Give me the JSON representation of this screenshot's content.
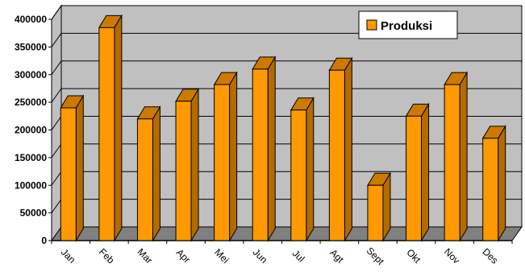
{
  "chart_data": {
    "type": "bar",
    "style": "3d-column",
    "categories": [
      "Jan",
      "Feb",
      "Mar",
      "Apr",
      "Mei",
      "Jun",
      "Jul",
      "Agt",
      "Sept",
      "Okt",
      "Nov",
      "Des"
    ],
    "series": [
      {
        "name": "Produksi",
        "values": [
          240000,
          385000,
          220000,
          252000,
          282000,
          310000,
          236000,
          308000,
          100000,
          225000,
          282000,
          185000
        ]
      }
    ],
    "yticks": [
      "0",
      "50000",
      "100000",
      "150000",
      "200000",
      "250000",
      "300000",
      "350000",
      "400000"
    ],
    "ylim": [
      0,
      400000
    ],
    "grid": true,
    "legend_position": "top-right",
    "colors": {
      "bar_front": "#FF9900",
      "bar_side": "#B36B00",
      "bar_top": "#CC7A00",
      "wall": "#C0C0C0",
      "floor": "#808080",
      "gridline": "#000000"
    }
  }
}
